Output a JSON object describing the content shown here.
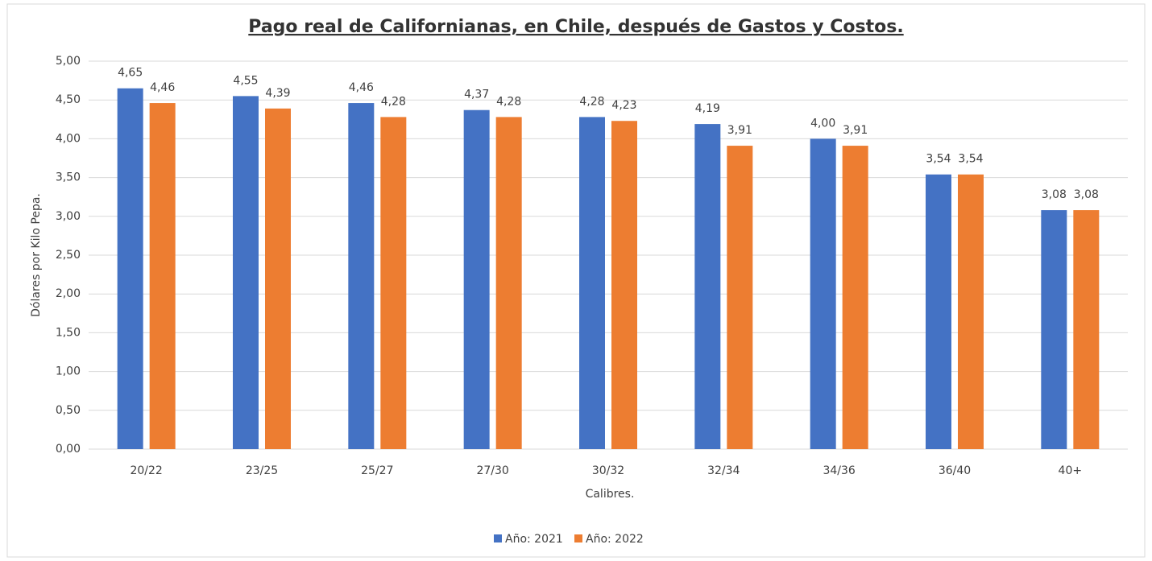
{
  "chart_data": {
    "type": "bar",
    "title": "Pago real de Californianas, en Chile, después de Gastos y Costos.",
    "x_label": "Calibres.",
    "y_label": "Dólares por Kilo Pepa.",
    "categories": [
      "20/22",
      "23/25",
      "25/27",
      "27/30",
      "30/32",
      "32/34",
      "34/36",
      "36/40",
      "40+"
    ],
    "series": [
      {
        "name": "Año: 2021",
        "color": "#4472c4",
        "values": [
          4.65,
          4.55,
          4.46,
          4.37,
          4.28,
          4.19,
          4.0,
          3.54,
          3.08
        ],
        "value_labels": [
          "4,65",
          "4,55",
          "4,46",
          "4,37",
          "4,28",
          "4,19",
          "4,00",
          "3,54",
          "3,08"
        ]
      },
      {
        "name": "Año: 2022",
        "color": "#ed7d31",
        "values": [
          4.46,
          4.39,
          4.28,
          4.28,
          4.23,
          3.91,
          3.91,
          3.54,
          3.08
        ],
        "value_labels": [
          "4,46",
          "4,39",
          "4,28",
          "4,28",
          "4,23",
          "3,91",
          "3,91",
          "3,54",
          "3,08"
        ]
      }
    ],
    "ylim": [
      0,
      5
    ],
    "yticks": [
      {
        "value": 0,
        "label": "0,00"
      },
      {
        "value": 0.5,
        "label": "0,50"
      },
      {
        "value": 1,
        "label": "1,00"
      },
      {
        "value": 1.5,
        "label": "1,50"
      },
      {
        "value": 2,
        "label": "2,00"
      },
      {
        "value": 2.5,
        "label": "2,50"
      },
      {
        "value": 3,
        "label": "3,00"
      },
      {
        "value": 3.5,
        "label": "3,50"
      },
      {
        "value": 4,
        "label": "4,00"
      },
      {
        "value": 4.5,
        "label": "4,50"
      },
      {
        "value": 5,
        "label": "5,00"
      }
    ],
    "grid": true,
    "legend": "bottom"
  }
}
